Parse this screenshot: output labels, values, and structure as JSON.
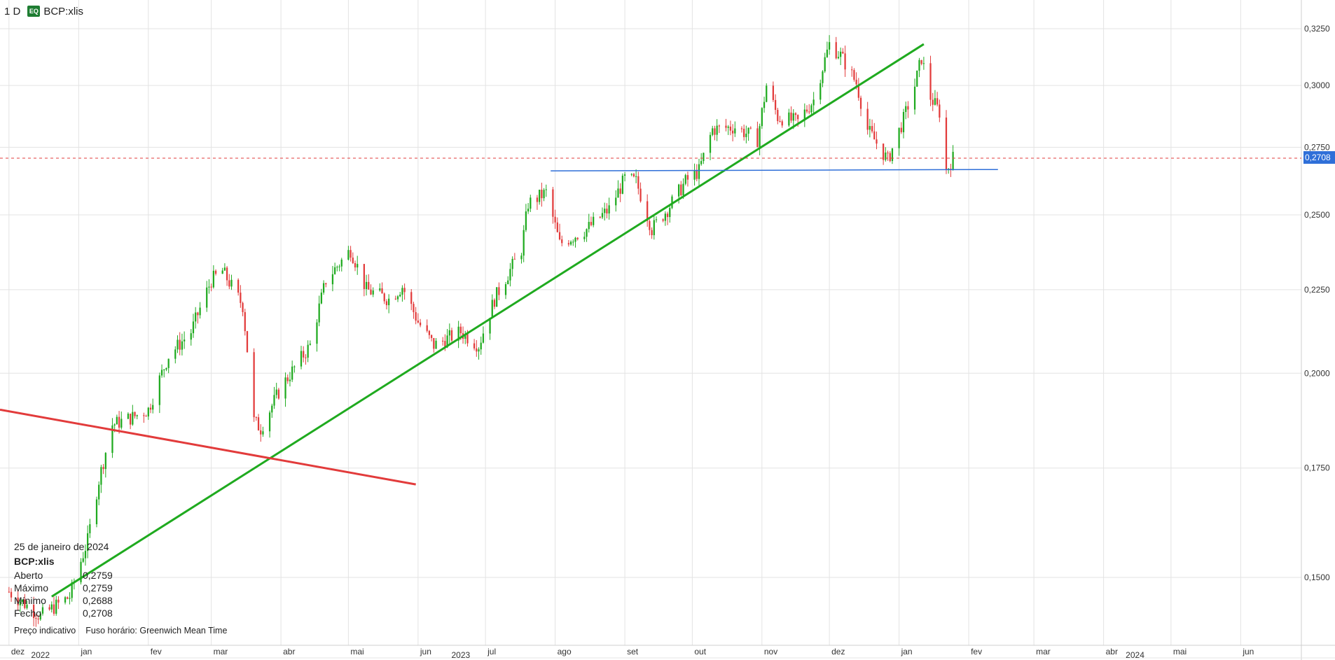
{
  "header": {
    "interval": "1 D",
    "exchange_badge": "EQ",
    "symbol": "BCP:xlis"
  },
  "info_panel": {
    "date": "25 de janeiro de 2024",
    "symbol": "BCP:xlis",
    "rows": [
      {
        "label": "Aberto",
        "value": "0,2759"
      },
      {
        "label": "Máximo",
        "value": "0,2759"
      },
      {
        "label": "Mínimo",
        "value": "0,2688"
      },
      {
        "label": "Fecho",
        "value": "0,2708"
      }
    ]
  },
  "footer": {
    "note": "Preço indicativo",
    "timezone": "Fuso horário: Greenwich Mean Time"
  },
  "colors": {
    "up": "#1faa1f",
    "down": "#e23b3b",
    "trend_up": "#1faa1f",
    "trend_down": "#e23b3b",
    "support": "#2f6fd8",
    "last_price": "#e23b3b",
    "grid": "#e3e3e3"
  },
  "chart_data": {
    "type": "candlestick",
    "last_price": 0.2708,
    "last_price_label": "0,2708",
    "y_axis": {
      "ticks": [
        0.15,
        0.175,
        0.2,
        0.225,
        0.25,
        0.275,
        0.3,
        0.325
      ],
      "tick_labels": [
        "0,1500",
        "0,1750",
        "0,2000",
        "0,2250",
        "0,2500",
        "0,2750",
        "0,3000",
        "0,3250"
      ],
      "scale": "log"
    },
    "x_axis": {
      "months": [
        {
          "label": "dez",
          "date": "2022-12-01"
        },
        {
          "label": "jan",
          "date": "2023-01-01"
        },
        {
          "label": "fev",
          "date": "2023-02-01"
        },
        {
          "label": "mar",
          "date": "2023-03-01"
        },
        {
          "label": "abr",
          "date": "2023-04-01"
        },
        {
          "label": "mai",
          "date": "2023-05-01"
        },
        {
          "label": "jun",
          "date": "2023-06-01"
        },
        {
          "label": "jul",
          "date": "2023-07-01"
        },
        {
          "label": "ago",
          "date": "2023-08-01"
        },
        {
          "label": "set",
          "date": "2023-09-01"
        },
        {
          "label": "out",
          "date": "2023-10-01"
        },
        {
          "label": "nov",
          "date": "2023-11-01"
        },
        {
          "label": "dez",
          "date": "2023-12-01"
        },
        {
          "label": "jan",
          "date": "2024-01-01"
        },
        {
          "label": "fev",
          "date": "2024-02-01"
        },
        {
          "label": "mar",
          "date": "2024-03-01"
        },
        {
          "label": "abr",
          "date": "2024-04-01"
        },
        {
          "label": "mai",
          "date": "2024-05-01"
        },
        {
          "label": "jun",
          "date": "2024-06-01"
        }
      ],
      "years": [
        {
          "label": "2022",
          "date": "2022-12-15"
        },
        {
          "label": "2023",
          "date": "2023-06-20"
        },
        {
          "label": "2024",
          "date": "2024-04-15"
        }
      ],
      "range": [
        "2022-11-27",
        "2024-06-28"
      ]
    },
    "close_path": [
      [
        "2022-12-01",
        0.147
      ],
      [
        "2022-12-15",
        0.142
      ],
      [
        "2022-12-28",
        0.146
      ],
      [
        "2023-01-05",
        0.158
      ],
      [
        "2023-01-10",
        0.172
      ],
      [
        "2023-01-16",
        0.186
      ],
      [
        "2023-01-25",
        0.188
      ],
      [
        "2023-02-01",
        0.19
      ],
      [
        "2023-02-10",
        0.205
      ],
      [
        "2023-02-20",
        0.212
      ],
      [
        "2023-03-01",
        0.228
      ],
      [
        "2023-03-06",
        0.231
      ],
      [
        "2023-03-15",
        0.22
      ],
      [
        "2023-03-20",
        0.187
      ],
      [
        "2023-03-23",
        0.185
      ],
      [
        "2023-04-01",
        0.196
      ],
      [
        "2023-04-14",
        0.208
      ],
      [
        "2023-04-21",
        0.228
      ],
      [
        "2023-05-02",
        0.238
      ],
      [
        "2023-05-09",
        0.225
      ],
      [
        "2023-05-19",
        0.222
      ],
      [
        "2023-05-25",
        0.226
      ],
      [
        "2023-06-01",
        0.215
      ],
      [
        "2023-06-08",
        0.208
      ],
      [
        "2023-06-20",
        0.212
      ],
      [
        "2023-06-28",
        0.208
      ],
      [
        "2023-07-05",
        0.222
      ],
      [
        "2023-07-17",
        0.238
      ],
      [
        "2023-07-20",
        0.254
      ],
      [
        "2023-07-28",
        0.258
      ],
      [
        "2023-08-03",
        0.24
      ],
      [
        "2023-08-15",
        0.245
      ],
      [
        "2023-08-25",
        0.252
      ],
      [
        "2023-09-01",
        0.263
      ],
      [
        "2023-09-06",
        0.262
      ],
      [
        "2023-09-13",
        0.245
      ],
      [
        "2023-09-20",
        0.252
      ],
      [
        "2023-09-28",
        0.262
      ],
      [
        "2023-10-04",
        0.266
      ],
      [
        "2023-10-10",
        0.282
      ],
      [
        "2023-10-20",
        0.283
      ],
      [
        "2023-10-30",
        0.278
      ],
      [
        "2023-11-03",
        0.3
      ],
      [
        "2023-11-08",
        0.287
      ],
      [
        "2023-11-17",
        0.285
      ],
      [
        "2023-11-24",
        0.294
      ],
      [
        "2023-12-01",
        0.318
      ],
      [
        "2023-12-06",
        0.313
      ],
      [
        "2023-12-13",
        0.301
      ],
      [
        "2023-12-18",
        0.282
      ],
      [
        "2023-12-27",
        0.27
      ],
      [
        "2024-01-03",
        0.286
      ],
      [
        "2024-01-08",
        0.3
      ],
      [
        "2024-01-11",
        0.312
      ],
      [
        "2024-01-15",
        0.295
      ],
      [
        "2024-01-19",
        0.289
      ],
      [
        "2024-01-22",
        0.266
      ],
      [
        "2024-01-25",
        0.2708
      ]
    ],
    "trendlines": [
      {
        "name": "trend-up",
        "color": "trend_up",
        "from": [
          "2022-12-20",
          0.146
        ],
        "to": [
          "2024-01-12",
          0.318
        ]
      },
      {
        "name": "trend-down",
        "color": "trend_down",
        "from": [
          "2022-11-27",
          0.19
        ],
        "to": [
          "2023-05-31",
          0.171
        ]
      },
      {
        "name": "support",
        "color": "support",
        "from": [
          "2023-07-30",
          0.266
        ],
        "to": [
          "2024-02-14",
          0.2665
        ]
      }
    ]
  }
}
